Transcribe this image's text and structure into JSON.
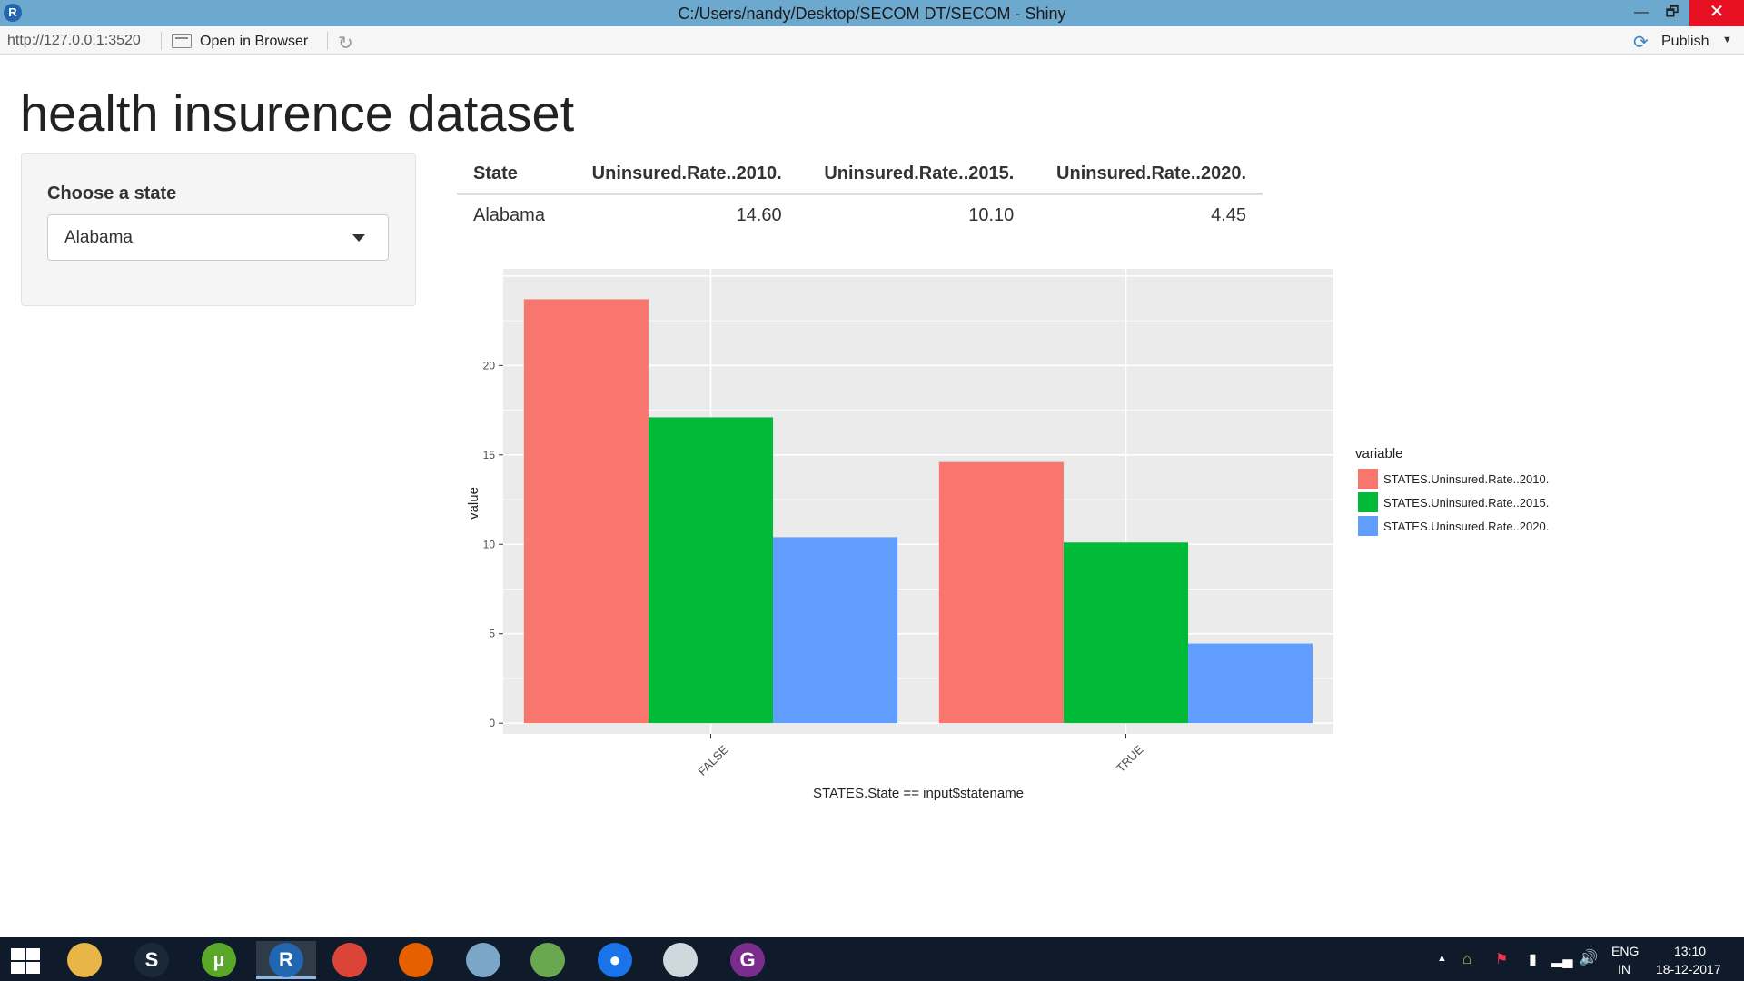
{
  "window": {
    "title": "C:/Users/nandy/Desktop/SECOM DT/SECOM - Shiny",
    "min_glyph": "—",
    "max_glyph": "🗗",
    "close_glyph": "✕"
  },
  "toolbar": {
    "url": "http://127.0.0.1:3520",
    "open_label": "Open in Browser",
    "publish_label": "Publish"
  },
  "page": {
    "title": "health insurence dataset"
  },
  "sidebar": {
    "label": "Choose a state",
    "selected": "Alabama"
  },
  "table": {
    "headers": [
      "State",
      "Uninsured.Rate..2010.",
      "Uninsured.Rate..2015.",
      "Uninsured.Rate..2020."
    ],
    "rows": [
      [
        "Alabama",
        "14.60",
        "10.10",
        "4.45"
      ]
    ]
  },
  "chart_data": {
    "type": "bar",
    "xlabel": "STATES.State == input$statename",
    "ylabel": "value",
    "categories": [
      "FALSE",
      "TRUE"
    ],
    "yticks": [
      "0",
      "5",
      "10",
      "15",
      "20"
    ],
    "ylim": [
      -0.6,
      25.4
    ],
    "grid": true,
    "legend_position": "right",
    "legend_title": "variable",
    "series": [
      {
        "name": "STATES.Uninsured.Rate..2010.",
        "values": [
          23.7,
          14.6
        ],
        "color": "#f8766d"
      },
      {
        "name": "STATES.Uninsured.Rate..2015.",
        "values": [
          17.1,
          10.1
        ],
        "color": "#00ba38"
      },
      {
        "name": "STATES.Uninsured.Rate..2020.",
        "values": [
          10.4,
          4.45
        ],
        "color": "#619cff"
      }
    ]
  },
  "taskbar": {
    "apps": [
      {
        "name": "file-explorer-icon",
        "glyph": "",
        "color": "#e8b548"
      },
      {
        "name": "steam-icon",
        "glyph": "S",
        "color": "#1b2838"
      },
      {
        "name": "utorrent-icon",
        "glyph": "µ",
        "color": "#5aa82a"
      },
      {
        "name": "r-icon",
        "glyph": "R",
        "color": "#2166b0"
      },
      {
        "name": "chrome-icon",
        "glyph": "",
        "color": "#db4437"
      },
      {
        "name": "firefox-icon",
        "glyph": "",
        "color": "#e66000"
      },
      {
        "name": "notes-icon",
        "glyph": "",
        "color": "#7aa7c7"
      },
      {
        "name": "notepad-icon",
        "glyph": "",
        "color": "#6aa84f"
      },
      {
        "name": "maps-icon",
        "glyph": "●",
        "color": "#1a73e8"
      },
      {
        "name": "archive-icon",
        "glyph": "",
        "color": "#cfd8dc"
      },
      {
        "name": "pdf-icon",
        "glyph": "G",
        "color": "#7b2d8e"
      }
    ],
    "lang": "ENG",
    "region": "IN",
    "time": "13:10",
    "date": "18-12-2017"
  }
}
